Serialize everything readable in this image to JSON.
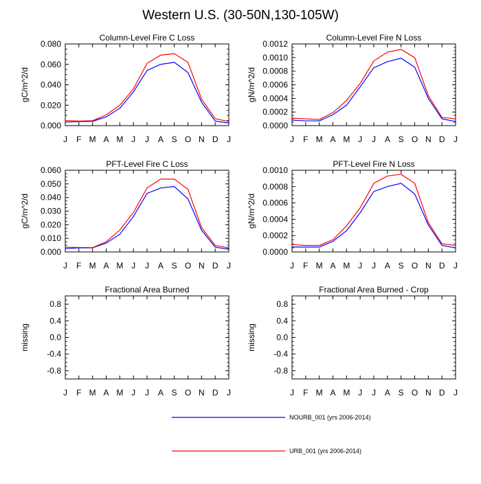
{
  "page": {
    "title": "Western U.S. (30-50N,130-105W)"
  },
  "months": [
    "J",
    "F",
    "M",
    "A",
    "M",
    "J",
    "J",
    "A",
    "S",
    "O",
    "N",
    "D",
    "J"
  ],
  "legend": [
    {
      "label": "NOURB_001 (yrs 2006-2014)",
      "color": "#0000ff"
    },
    {
      "label": "URB_001 (yrs 2006-2014)",
      "color": "#ff0000"
    }
  ],
  "chart_data": [
    {
      "type": "line",
      "title": "Column-Level Fire C Loss",
      "ylabel": "gC/m^2/d",
      "ylim": [
        0,
        0.08
      ],
      "yticks": [
        0,
        0.02,
        0.04,
        0.06,
        0.08
      ],
      "ytick_labels": [
        "0.000",
        "0.020",
        "0.040",
        "0.060",
        "0.080"
      ],
      "categories": [
        "J",
        "F",
        "M",
        "A",
        "M",
        "J",
        "J",
        "A",
        "S",
        "O",
        "N",
        "D",
        "J"
      ],
      "series": [
        {
          "name": "NOURB_001 (yrs 2006-2014)",
          "color": "#0000ff",
          "values": [
            0.0035,
            0.004,
            0.0042,
            0.0085,
            0.017,
            0.033,
            0.054,
            0.06,
            0.062,
            0.052,
            0.023,
            0.0045,
            0.0025
          ]
        },
        {
          "name": "URB_001 (yrs 2006-2014)",
          "color": "#ff0000",
          "values": [
            0.005,
            0.0045,
            0.0048,
            0.0105,
            0.02,
            0.036,
            0.061,
            0.069,
            0.0705,
            0.062,
            0.026,
            0.0068,
            0.004
          ]
        }
      ]
    },
    {
      "type": "line",
      "title": "Column-Level Fire N Loss",
      "ylabel": "gN/m^2/d",
      "ylim": [
        0,
        0.0012
      ],
      "yticks": [
        0,
        0.0002,
        0.0004,
        0.0006,
        0.0008,
        0.001,
        0.0012
      ],
      "ytick_labels": [
        "0.0000",
        "0.0002",
        "0.0004",
        "0.0006",
        "0.0008",
        "0.0010",
        "0.0012"
      ],
      "categories": [
        "J",
        "F",
        "M",
        "A",
        "M",
        "J",
        "J",
        "A",
        "S",
        "O",
        "N",
        "D",
        "J"
      ],
      "series": [
        {
          "name": "NOURB_001 (yrs 2006-2014)",
          "color": "#0000ff",
          "values": [
            8e-05,
            7e-05,
            7e-05,
            0.00016,
            0.0003,
            0.00057,
            0.00085,
            0.00094,
            0.00099,
            0.00086,
            0.0004,
            0.0001,
            6e-05
          ]
        },
        {
          "name": "URB_001 (yrs 2006-2014)",
          "color": "#ff0000",
          "values": [
            0.00011,
            0.0001,
            9e-05,
            0.00019,
            0.00037,
            0.00062,
            0.00095,
            0.00108,
            0.00112,
            0.001,
            0.00044,
            0.00012,
            0.0001
          ]
        }
      ]
    },
    {
      "type": "line",
      "title": "PFT-Level Fire C Loss",
      "ylabel": "gC/m^2/d",
      "ylim": [
        0,
        0.06
      ],
      "yticks": [
        0,
        0.01,
        0.02,
        0.03,
        0.04,
        0.05,
        0.06
      ],
      "ytick_labels": [
        "0.000",
        "0.010",
        "0.020",
        "0.030",
        "0.040",
        "0.050",
        "0.060"
      ],
      "categories": [
        "J",
        "F",
        "M",
        "A",
        "M",
        "J",
        "J",
        "A",
        "S",
        "O",
        "N",
        "D",
        "J"
      ],
      "series": [
        {
          "name": "NOURB_001 (yrs 2006-2014)",
          "color": "#0000ff",
          "values": [
            0.0025,
            0.003,
            0.003,
            0.0065,
            0.013,
            0.026,
            0.043,
            0.047,
            0.048,
            0.039,
            0.016,
            0.0035,
            0.002
          ]
        },
        {
          "name": "URB_001 (yrs 2006-2014)",
          "color": "#ff0000",
          "values": [
            0.0035,
            0.0033,
            0.0032,
            0.0075,
            0.016,
            0.029,
            0.047,
            0.0535,
            0.0535,
            0.046,
            0.018,
            0.0048,
            0.003
          ]
        }
      ]
    },
    {
      "type": "line",
      "title": "PFT-Level Fire N Loss",
      "ylabel": "gN/m^2/d",
      "ylim": [
        0,
        0.001
      ],
      "yticks": [
        0,
        0.0002,
        0.0004,
        0.0006,
        0.0008,
        0.001
      ],
      "ytick_labels": [
        "0.0000",
        "0.0002",
        "0.0004",
        "0.0006",
        "0.0008",
        "0.0010"
      ],
      "categories": [
        "J",
        "F",
        "M",
        "A",
        "M",
        "J",
        "J",
        "A",
        "S",
        "O",
        "N",
        "D",
        "J"
      ],
      "series": [
        {
          "name": "NOURB_001 (yrs 2006-2014)",
          "color": "#0000ff",
          "values": [
            6e-05,
            6e-05,
            6e-05,
            0.00013,
            0.00026,
            0.00048,
            0.00074,
            0.0008,
            0.00084,
            0.00071,
            0.00033,
            8e-05,
            5e-05
          ]
        },
        {
          "name": "URB_001 (yrs 2006-2014)",
          "color": "#ff0000",
          "values": [
            9e-05,
            8e-05,
            8e-05,
            0.00015,
            0.00032,
            0.00054,
            0.00084,
            0.00093,
            0.00095,
            0.00084,
            0.00036,
            0.0001,
            8e-05
          ]
        }
      ]
    },
    {
      "type": "line",
      "title": "Fractional Area Burned",
      "ylabel": "missing",
      "ylim": [
        -1,
        1
      ],
      "yticks": [
        -0.8,
        -0.4,
        0,
        0.4,
        0.8
      ],
      "ytick_labels": [
        "-0.8",
        "-0.4",
        "0.0",
        "0.4",
        "0.8"
      ],
      "categories": [
        "J",
        "F",
        "M",
        "A",
        "M",
        "J",
        "J",
        "A",
        "S",
        "O",
        "N",
        "D",
        "J"
      ],
      "series": []
    },
    {
      "type": "line",
      "title": "Fractional Area Burned - Crop",
      "ylabel": "missing",
      "ylim": [
        -1,
        1
      ],
      "yticks": [
        -0.8,
        -0.4,
        0,
        0.4,
        0.8
      ],
      "ytick_labels": [
        "-0.8",
        "-0.4",
        "0.0",
        "0.4",
        "0.8"
      ],
      "categories": [
        "J",
        "F",
        "M",
        "A",
        "M",
        "J",
        "J",
        "A",
        "S",
        "O",
        "N",
        "D",
        "J"
      ],
      "series": []
    }
  ]
}
